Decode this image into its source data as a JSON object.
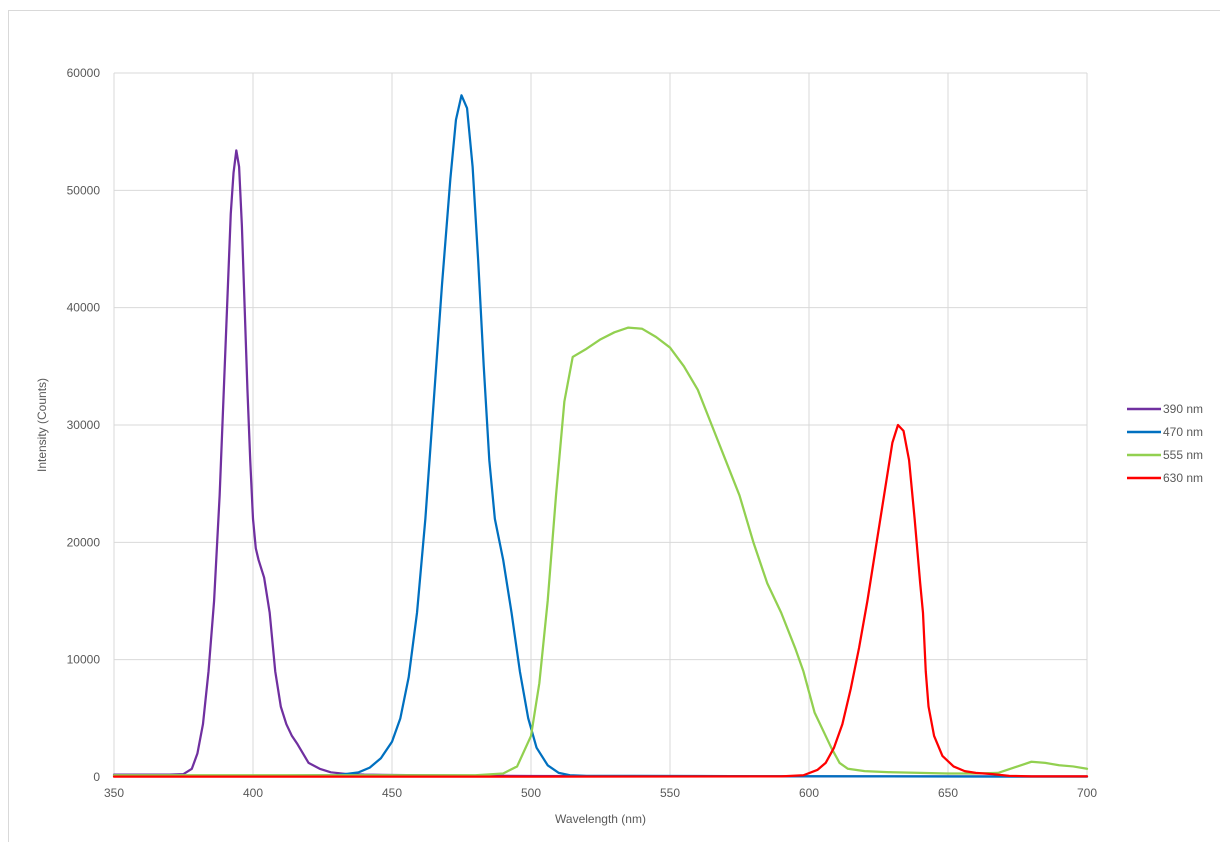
{
  "chart_data": {
    "type": "line",
    "title": "",
    "xlabel": "Wavelength (nm)",
    "ylabel": "Intensity (Counts)",
    "xlim": [
      350,
      700
    ],
    "ylim": [
      0,
      60000
    ],
    "x_ticks": [
      350,
      400,
      450,
      500,
      550,
      600,
      650,
      700
    ],
    "y_ticks": [
      0,
      10000,
      20000,
      30000,
      40000,
      50000,
      60000
    ],
    "grid": true,
    "legend_position": "right",
    "series": [
      {
        "name": "390 nm",
        "color": "#7030a0",
        "points": [
          [
            350,
            200
          ],
          [
            370,
            200
          ],
          [
            375,
            250
          ],
          [
            378,
            700
          ],
          [
            380,
            2000
          ],
          [
            382,
            4500
          ],
          [
            384,
            9000
          ],
          [
            386,
            15000
          ],
          [
            388,
            24000
          ],
          [
            390,
            36000
          ],
          [
            391,
            42000
          ],
          [
            392,
            48000
          ],
          [
            393,
            51500
          ],
          [
            394,
            53400
          ],
          [
            395,
            52000
          ],
          [
            396,
            47000
          ],
          [
            397,
            40000
          ],
          [
            398,
            33000
          ],
          [
            399,
            27000
          ],
          [
            400,
            22000
          ],
          [
            401,
            19500
          ],
          [
            402,
            18500
          ],
          [
            404,
            17000
          ],
          [
            406,
            14000
          ],
          [
            408,
            9000
          ],
          [
            410,
            6000
          ],
          [
            412,
            4500
          ],
          [
            414,
            3500
          ],
          [
            416,
            2800
          ],
          [
            418,
            2000
          ],
          [
            420,
            1200
          ],
          [
            424,
            700
          ],
          [
            428,
            400
          ],
          [
            434,
            250
          ],
          [
            440,
            200
          ],
          [
            460,
            150
          ],
          [
            480,
            120
          ],
          [
            500,
            80
          ],
          [
            550,
            60
          ],
          [
            600,
            50
          ],
          [
            650,
            50
          ],
          [
            700,
            50
          ]
        ]
      },
      {
        "name": "470 nm",
        "color": "#0070c0",
        "points": [
          [
            350,
            100
          ],
          [
            400,
            100
          ],
          [
            430,
            150
          ],
          [
            438,
            400
          ],
          [
            442,
            800
          ],
          [
            446,
            1600
          ],
          [
            450,
            3000
          ],
          [
            453,
            5000
          ],
          [
            456,
            8500
          ],
          [
            459,
            14000
          ],
          [
            462,
            22000
          ],
          [
            465,
            32000
          ],
          [
            468,
            42000
          ],
          [
            471,
            51000
          ],
          [
            473,
            56000
          ],
          [
            475,
            58100
          ],
          [
            477,
            57000
          ],
          [
            479,
            52000
          ],
          [
            481,
            44000
          ],
          [
            483,
            35000
          ],
          [
            485,
            27000
          ],
          [
            487,
            22000
          ],
          [
            490,
            18500
          ],
          [
            493,
            14000
          ],
          [
            496,
            9000
          ],
          [
            499,
            5000
          ],
          [
            502,
            2500
          ],
          [
            506,
            1000
          ],
          [
            510,
            350
          ],
          [
            514,
            150
          ],
          [
            520,
            100
          ],
          [
            560,
            80
          ],
          [
            600,
            60
          ],
          [
            650,
            40
          ],
          [
            700,
            30
          ]
        ]
      },
      {
        "name": "555 nm",
        "color": "#92d050",
        "points": [
          [
            350,
            150
          ],
          [
            400,
            150
          ],
          [
            450,
            150
          ],
          [
            480,
            150
          ],
          [
            490,
            300
          ],
          [
            495,
            900
          ],
          [
            500,
            3500
          ],
          [
            503,
            8000
          ],
          [
            506,
            15000
          ],
          [
            509,
            24000
          ],
          [
            512,
            32000
          ],
          [
            515,
            35800
          ],
          [
            520,
            36500
          ],
          [
            525,
            37300
          ],
          [
            530,
            37900
          ],
          [
            535,
            38300
          ],
          [
            540,
            38200
          ],
          [
            545,
            37500
          ],
          [
            550,
            36600
          ],
          [
            555,
            35000
          ],
          [
            560,
            33000
          ],
          [
            565,
            30000
          ],
          [
            570,
            27000
          ],
          [
            575,
            24000
          ],
          [
            580,
            20000
          ],
          [
            585,
            16500
          ],
          [
            590,
            14000
          ],
          [
            595,
            11000
          ],
          [
            598,
            9000
          ],
          [
            602,
            5500
          ],
          [
            605,
            4000
          ],
          [
            608,
            2500
          ],
          [
            611,
            1200
          ],
          [
            614,
            700
          ],
          [
            620,
            500
          ],
          [
            630,
            400
          ],
          [
            640,
            350
          ],
          [
            650,
            300
          ],
          [
            660,
            300
          ],
          [
            668,
            350
          ],
          [
            675,
            900
          ],
          [
            680,
            1300
          ],
          [
            685,
            1200
          ],
          [
            690,
            1000
          ],
          [
            695,
            900
          ],
          [
            700,
            700
          ]
        ]
      },
      {
        "name": "630 nm",
        "color": "#ff0000",
        "points": [
          [
            350,
            30
          ],
          [
            500,
            30
          ],
          [
            590,
            50
          ],
          [
            598,
            150
          ],
          [
            603,
            600
          ],
          [
            606,
            1200
          ],
          [
            609,
            2500
          ],
          [
            612,
            4500
          ],
          [
            615,
            7500
          ],
          [
            618,
            11000
          ],
          [
            621,
            15000
          ],
          [
            624,
            19500
          ],
          [
            627,
            24000
          ],
          [
            630,
            28500
          ],
          [
            632,
            30000
          ],
          [
            634,
            29500
          ],
          [
            636,
            27000
          ],
          [
            638,
            22000
          ],
          [
            640,
            16500
          ],
          [
            641,
            14000
          ],
          [
            642,
            9000
          ],
          [
            643,
            6000
          ],
          [
            645,
            3500
          ],
          [
            648,
            1800
          ],
          [
            652,
            900
          ],
          [
            656,
            500
          ],
          [
            660,
            350
          ],
          [
            666,
            250
          ],
          [
            672,
            100
          ],
          [
            680,
            50
          ],
          [
            700,
            50
          ]
        ]
      }
    ]
  }
}
